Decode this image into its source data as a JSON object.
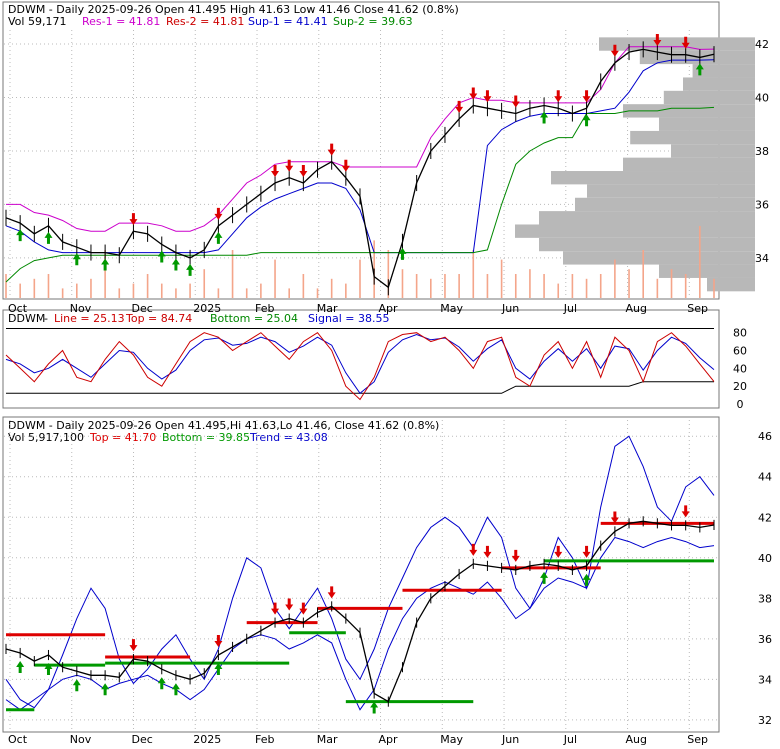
{
  "chart_data": [
    {
      "type": "line",
      "panel": "price",
      "header": {
        "symbol": "DDWM",
        "date_line": "DDWM - Daily 2025-09-26 Open 41.495  High 41.63  Low 41.46  Close 41.62 (0.8%)",
        "vol": "Vol 59,171",
        "res1": "Res-1 = 41.81",
        "res2": "Res-2 = 41.81",
        "sup1": "Sup-1 = 41.41",
        "sup2": "Sup-2 = 39.63"
      },
      "ylim": [
        32.5,
        42.6
      ],
      "y_ticks": [
        "34",
        "36",
        "38",
        "40",
        "42"
      ],
      "x_ticks": [
        "Oct",
        "Nov",
        "Dec",
        "2025",
        "Feb",
        "Mar",
        "Apr",
        "May",
        "Jun",
        "Jul",
        "Aug",
        "Sep"
      ],
      "series": [
        {
          "name": "Close",
          "values": [
            35.5,
            35.3,
            34.9,
            35.2,
            34.6,
            34.4,
            34.2,
            34.2,
            34.1,
            35.0,
            34.9,
            34.5,
            34.2,
            34.0,
            34.3,
            35.2,
            35.6,
            36.0,
            36.4,
            36.8,
            37.0,
            36.8,
            37.3,
            37.6,
            37.0,
            36.3,
            33.3,
            32.9,
            34.6,
            36.8,
            38.0,
            38.6,
            39.2,
            39.7,
            39.6,
            39.5,
            39.4,
            39.6,
            39.7,
            39.6,
            39.4,
            39.6,
            40.6,
            41.3,
            41.7,
            41.8,
            41.7,
            41.6,
            41.6,
            41.5,
            41.62
          ]
        },
        {
          "name": "Resistance",
          "values": [
            36.0,
            36.0,
            35.7,
            35.6,
            35.4,
            35.1,
            35.0,
            35.0,
            35.3,
            35.3,
            35.3,
            35.2,
            35.0,
            35.0,
            35.2,
            35.6,
            36.2,
            36.8,
            37.1,
            37.5,
            37.6,
            37.6,
            37.6,
            37.6,
            37.4,
            37.4,
            37.4,
            37.4,
            37.4,
            37.4,
            38.5,
            39.2,
            39.8,
            40.0,
            39.9,
            39.9,
            39.8,
            39.8,
            39.8,
            39.8,
            39.8,
            39.8,
            40.3,
            41.3,
            41.9,
            41.9,
            41.9,
            41.9,
            41.9,
            41.8,
            41.81
          ]
        },
        {
          "name": "Support",
          "values": [
            35.2,
            35.0,
            34.6,
            34.3,
            34.2,
            34.2,
            34.2,
            34.2,
            34.2,
            34.2,
            34.2,
            34.2,
            34.2,
            34.2,
            34.2,
            34.3,
            34.9,
            35.5,
            35.9,
            36.2,
            36.4,
            36.6,
            36.8,
            36.8,
            36.6,
            35.8,
            34.2,
            34.2,
            34.2,
            34.2,
            34.2,
            34.2,
            34.2,
            34.2,
            38.2,
            38.8,
            39.1,
            39.3,
            39.4,
            39.4,
            39.4,
            39.4,
            39.5,
            39.6,
            40.2,
            41.0,
            41.3,
            41.4,
            41.4,
            41.4,
            41.41
          ]
        },
        {
          "name": "Sup-2",
          "values": [
            33.1,
            33.6,
            33.9,
            34.0,
            34.1,
            34.1,
            34.1,
            34.1,
            34.1,
            34.1,
            34.1,
            34.1,
            34.1,
            34.1,
            34.1,
            34.1,
            34.1,
            34.1,
            34.2,
            34.2,
            34.2,
            34.2,
            34.2,
            34.2,
            34.2,
            34.2,
            34.2,
            34.2,
            34.2,
            34.2,
            34.2,
            34.2,
            34.2,
            34.2,
            34.3,
            36.0,
            37.5,
            38.0,
            38.3,
            38.5,
            38.5,
            39.4,
            39.4,
            39.4,
            39.5,
            39.5,
            39.5,
            39.6,
            39.6,
            39.6,
            39.63
          ]
        }
      ],
      "volume_profile": [
        {
          "price": 42.0,
          "volume": 0.65
        },
        {
          "price": 41.5,
          "volume": 0.48
        },
        {
          "price": 41.0,
          "volume": 0.26
        },
        {
          "price": 40.5,
          "volume": 0.3
        },
        {
          "price": 40.0,
          "volume": 0.38
        },
        {
          "price": 39.5,
          "volume": 0.55
        },
        {
          "price": 39.0,
          "volume": 0.4
        },
        {
          "price": 38.5,
          "volume": 0.52
        },
        {
          "price": 38.0,
          "volume": 0.35
        },
        {
          "price": 37.5,
          "volume": 0.55
        },
        {
          "price": 37.0,
          "volume": 0.85
        },
        {
          "price": 36.5,
          "volume": 0.7
        },
        {
          "price": 36.0,
          "volume": 0.75
        },
        {
          "price": 35.5,
          "volume": 0.9
        },
        {
          "price": 35.0,
          "volume": 1.0
        },
        {
          "price": 34.5,
          "volume": 0.9
        },
        {
          "price": 34.0,
          "volume": 0.8
        },
        {
          "price": 33.5,
          "volume": 0.4
        },
        {
          "price": 33.0,
          "volume": 0.2
        }
      ],
      "daily_volume": [
        0.05,
        0.03,
        0.04,
        0.05,
        0.02,
        0.03,
        0.04,
        0.1,
        0.02,
        0.03,
        0.05,
        0.03,
        0.02,
        0.03,
        0.06,
        0.02,
        0.1,
        0.02,
        0.03,
        0.08,
        0.02,
        0.05,
        0.02,
        0.04,
        0.03,
        0.08,
        0.12,
        0.1,
        0.06,
        0.05,
        0.04,
        0.05,
        0.05,
        0.1,
        0.05,
        0.08,
        0.05,
        0.06,
        0.05,
        0.03,
        0.05,
        0.04,
        0.05,
        0.08,
        0.06,
        0.1,
        0.04,
        0.06,
        0.05,
        0.15,
        0.04
      ],
      "arrows_down": [
        9,
        15,
        19,
        20,
        21,
        23,
        24,
        32,
        33,
        34,
        36,
        39,
        41,
        43,
        46,
        48
      ],
      "arrows_up": [
        1,
        3,
        5,
        7,
        11,
        12,
        13,
        15,
        28,
        38,
        41,
        49
      ],
      "colors": {
        "res1": "#cc00cc",
        "res2": "#cc0000",
        "sup1": "#0000cc",
        "sup2": "#008800",
        "up": "#009900",
        "down": "#dd0000"
      }
    },
    {
      "type": "line",
      "panel": "stochastic",
      "header": {
        "symbol": "DDWM",
        "line": "Line = 25.13",
        "top": "Top = 84.74",
        "bottom": "Bottom = 25.04",
        "signal": "Signal = 38.55"
      },
      "ylim": [
        0,
        92
      ],
      "y_ticks": [
        "0",
        "20",
        "40",
        "60",
        "80"
      ],
      "series": [
        {
          "name": "Line",
          "values": [
            55,
            40,
            25,
            45,
            60,
            30,
            25,
            50,
            70,
            55,
            30,
            20,
            45,
            70,
            80,
            75,
            60,
            70,
            80,
            65,
            50,
            70,
            80,
            60,
            20,
            5,
            30,
            70,
            78,
            80,
            70,
            75,
            60,
            40,
            70,
            75,
            30,
            20,
            55,
            70,
            40,
            70,
            30,
            75,
            60,
            25,
            70,
            80,
            65,
            45,
            25.13
          ]
        },
        {
          "name": "Signal",
          "values": [
            50,
            45,
            35,
            40,
            50,
            40,
            30,
            45,
            60,
            58,
            40,
            28,
            38,
            60,
            72,
            74,
            66,
            68,
            75,
            70,
            58,
            65,
            75,
            66,
            35,
            12,
            25,
            58,
            72,
            78,
            72,
            74,
            64,
            48,
            62,
            72,
            40,
            28,
            48,
            62,
            48,
            62,
            40,
            65,
            62,
            38,
            60,
            75,
            68,
            52,
            38.55
          ]
        },
        {
          "name": "Top",
          "values": [
            84.7,
            84.7,
            84.7,
            84.7,
            84.7,
            84.7,
            84.7,
            84.7,
            84.7,
            84.7,
            84.7,
            84.7,
            84.7,
            84.7,
            84.7,
            84.7,
            84.7,
            84.7,
            84.7,
            84.7,
            84.7,
            84.7,
            84.7,
            84.7,
            84.7,
            84.7,
            84.7,
            84.7,
            84.7,
            84.7,
            84.7,
            84.7,
            84.7,
            84.7,
            84.7,
            84.7,
            84.7,
            84.7,
            84.7,
            84.7,
            84.7,
            84.7,
            84.7,
            84.7,
            84.7,
            84.7,
            84.7,
            84.7,
            84.7,
            84.7,
            84.74
          ]
        },
        {
          "name": "Bottom",
          "values": [
            12,
            12,
            12,
            12,
            12,
            12,
            12,
            12,
            12,
            12,
            12,
            12,
            12,
            12,
            12,
            12,
            12,
            12,
            12,
            12,
            12,
            12,
            12,
            12,
            12,
            12,
            12,
            12,
            12,
            12,
            12,
            12,
            12,
            12,
            12,
            12,
            20,
            20,
            20,
            20,
            20,
            20,
            20,
            20,
            20,
            25,
            25,
            25,
            25,
            25,
            25.04
          ]
        }
      ],
      "colors": {
        "line": "#cc0000",
        "top": "#0000cc",
        "bottom": "#008800",
        "signal": "#0000cc"
      }
    },
    {
      "type": "line",
      "panel": "trend",
      "header": {
        "date_line": "DDWM - Daily 2025-09-26 Open 41.495,Hi 41.63,Lo 41.46, Close 41.62 (0.8%)",
        "vol": "Vol 5,917,100",
        "top": "Top = 41.70",
        "bottom": "Bottom = 39.85",
        "trend": "Trend = 43.08"
      },
      "ylim": [
        31.5,
        46.8
      ],
      "y_ticks": [
        "32",
        "34",
        "36",
        "38",
        "40",
        "42",
        "44",
        "46"
      ],
      "x_ticks": [
        "Oct",
        "Nov",
        "Dec",
        "2025",
        "Feb",
        "Mar",
        "Apr",
        "May",
        "Jun",
        "Jul",
        "Aug",
        "Sep"
      ],
      "series": [
        {
          "name": "Close",
          "values": [
            35.5,
            35.3,
            34.9,
            35.2,
            34.6,
            34.4,
            34.2,
            34.2,
            34.1,
            35.0,
            34.9,
            34.5,
            34.2,
            34.0,
            34.3,
            35.2,
            35.6,
            36.0,
            36.4,
            36.8,
            37.0,
            36.8,
            37.3,
            37.6,
            37.0,
            36.3,
            33.3,
            32.9,
            34.6,
            36.8,
            38.0,
            38.6,
            39.2,
            39.7,
            39.6,
            39.5,
            39.4,
            39.6,
            39.7,
            39.6,
            39.4,
            39.6,
            40.6,
            41.3,
            41.7,
            41.8,
            41.7,
            41.6,
            41.6,
            41.5,
            41.62
          ]
        },
        {
          "name": "Trend",
          "values": [
            34.0,
            33.0,
            32.6,
            33.5,
            35.2,
            37.0,
            38.5,
            37.5,
            35.0,
            33.8,
            34.5,
            35.5,
            36.2,
            35.0,
            34.0,
            35.5,
            38.0,
            40.0,
            39.5,
            37.5,
            36.5,
            37.5,
            38.5,
            37.0,
            35.0,
            34.0,
            35.5,
            37.5,
            39.0,
            40.5,
            41.5,
            42.0,
            41.5,
            40.5,
            42.0,
            41.0,
            38.5,
            37.5,
            39.0,
            41.0,
            40.0,
            38.5,
            42.5,
            45.5,
            46.0,
            44.5,
            42.5,
            41.8,
            43.5,
            44.0,
            43.08
          ]
        },
        {
          "name": "Lower band",
          "values": [
            33.0,
            32.5,
            33.0,
            33.5,
            34.0,
            34.2,
            34.0,
            33.5,
            33.8,
            34.0,
            34.2,
            33.8,
            33.5,
            33.0,
            33.5,
            34.5,
            35.5,
            36.0,
            36.2,
            36.0,
            35.5,
            35.8,
            36.2,
            35.8,
            34.0,
            32.5,
            33.5,
            35.5,
            37.0,
            38.0,
            38.5,
            38.8,
            38.5,
            38.2,
            38.8,
            38.0,
            37.0,
            37.5,
            38.5,
            39.0,
            38.8,
            38.5,
            40.0,
            41.0,
            40.8,
            40.5,
            40.8,
            41.0,
            40.8,
            40.5,
            40.6
          ]
        }
      ],
      "level_segments": [
        {
          "color": "#dd0000",
          "from": 0,
          "to": 7,
          "value": 36.2
        },
        {
          "color": "#dd0000",
          "from": 7,
          "to": 13,
          "value": 35.1
        },
        {
          "color": "#dd0000",
          "from": 17,
          "to": 22,
          "value": 36.8
        },
        {
          "color": "#dd0000",
          "from": 22,
          "to": 28,
          "value": 37.5
        },
        {
          "color": "#dd0000",
          "from": 28,
          "to": 35,
          "value": 38.4
        },
        {
          "color": "#dd0000",
          "from": 35,
          "to": 42,
          "value": 39.5
        },
        {
          "color": "#dd0000",
          "from": 42,
          "to": 51,
          "value": 41.7
        },
        {
          "color": "#009900",
          "from": 0,
          "to": 2,
          "value": 32.5
        },
        {
          "color": "#009900",
          "from": 2,
          "to": 7,
          "value": 34.7
        },
        {
          "color": "#009900",
          "from": 7,
          "to": 20,
          "value": 34.8
        },
        {
          "color": "#009900",
          "from": 20,
          "to": 24,
          "value": 36.3
        },
        {
          "color": "#009900",
          "from": 24,
          "to": 33,
          "value": 32.9
        },
        {
          "color": "#009900",
          "from": 38,
          "to": 51,
          "value": 39.85
        }
      ],
      "arrows_down": [
        9,
        15,
        19,
        20,
        21,
        23,
        33,
        34,
        36,
        39,
        41,
        43,
        48
      ],
      "arrows_up": [
        1,
        3,
        5,
        7,
        11,
        12,
        15,
        26,
        38,
        41
      ],
      "colors": {
        "top": "#dd0000",
        "bottom": "#009900",
        "trend": "#0000cc"
      }
    }
  ]
}
